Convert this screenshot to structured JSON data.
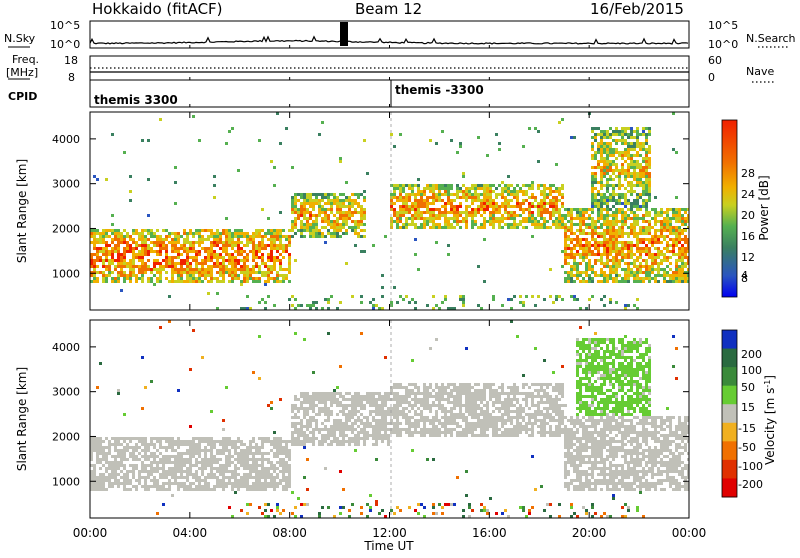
{
  "header": {
    "radar": "Hokkaido (fitACF)",
    "beam": "Beam 12",
    "date": "16/Feb/2015"
  },
  "noise_panel": {
    "left_label": "N.Sky",
    "right_label": "N.Search",
    "left_ticks": [
      "10^5",
      "10^0"
    ],
    "right_ticks": [
      "10^5",
      "10^0"
    ]
  },
  "freq_panel": {
    "left_label_top": "Freq.",
    "left_label_unit": "[MHz]",
    "right_label": "Nave",
    "left_ticks": [
      "18",
      "8"
    ],
    "right_ticks": [
      "60",
      "0"
    ]
  },
  "cpid_panel": {
    "label": "CPID",
    "entries": [
      "themis 3300",
      "themis -3300"
    ],
    "entry_start_hours": [
      0,
      12
    ]
  },
  "time_axis": {
    "label": "Time UT",
    "ticks": [
      "00:00",
      "04:00",
      "08:00",
      "12:00",
      "16:00",
      "20:00",
      "00:00"
    ],
    "tick_hours": [
      0,
      4,
      8,
      12,
      16,
      20,
      24
    ]
  },
  "power_panel": {
    "ylabel": "Slant Range [km]",
    "yticks": [
      "4000",
      "3000",
      "2000",
      "1000"
    ],
    "ytick_values": [
      4000,
      3000,
      2000,
      1000
    ],
    "colorbar_label": "Power [dB]",
    "colorbar_ticks": [
      "28",
      "24",
      "20",
      "16",
      "12",
      "8",
      "4"
    ]
  },
  "velocity_panel": {
    "ylabel": "Slant Range [km]",
    "yticks": [
      "4000",
      "3000",
      "2000",
      "1000"
    ],
    "ytick_values": [
      4000,
      3000,
      2000,
      1000
    ],
    "colorbar_label": "Velocity [m s",
    "colorbar_label_sup": "-1",
    "colorbar_label_end": "]",
    "colorbar_ticks": [
      "200",
      "100",
      "50",
      "15",
      "-15",
      "-50",
      "-100",
      "-200"
    ]
  },
  "chart_data": [
    {
      "type": "heatmap",
      "title": "",
      "xlabel": "Time UT",
      "ylabel": "Slant Range [km]",
      "xlim": [
        0,
        24
      ],
      "ylim": [
        180,
        4600
      ],
      "zlabel": "Power [dB]",
      "zlim": [
        0,
        32
      ],
      "colors": [
        "#0000f0",
        "#2a55c0",
        "#3a8060",
        "#55b050",
        "#c8d020",
        "#f0b000",
        "#f07000",
        "#f02000"
      ],
      "echo_bands": [
        {
          "t": [
            0.0,
            8.0
          ],
          "range": [
            800,
            2000
          ],
          "power_db": 28
        },
        {
          "t": [
            8.0,
            11.0
          ],
          "range": [
            1800,
            2800
          ],
          "power_db": 24
        },
        {
          "t": [
            12.0,
            19.0
          ],
          "range": [
            2000,
            3000
          ],
          "power_db": 26
        },
        {
          "t": [
            19.0,
            24.0
          ],
          "range": [
            800,
            2500
          ],
          "power_db": 26
        },
        {
          "t": [
            20.0,
            22.5
          ],
          "range": [
            2500,
            4300
          ],
          "power_db": 22
        }
      ]
    },
    {
      "type": "heatmap",
      "title": "",
      "xlabel": "Time UT",
      "ylabel": "Slant Range [km]",
      "xlim": [
        0,
        24
      ],
      "ylim": [
        180,
        4600
      ],
      "zlabel": "Velocity [m s-1]",
      "zlim": [
        -200,
        200
      ],
      "colors": [
        "#1030c0",
        "#2a6a40",
        "#3a8a3a",
        "#66cc33",
        "#c0c0b8",
        "#f0b020",
        "#f07000",
        "#e03000",
        "#e00000"
      ],
      "echo_bands": [
        {
          "t": [
            0.0,
            8.0
          ],
          "range": [
            800,
            2000
          ],
          "velocity": 0
        },
        {
          "t": [
            8.0,
            12.0
          ],
          "range": [
            1800,
            3000
          ],
          "velocity": 0
        },
        {
          "t": [
            12.0,
            19.0
          ],
          "range": [
            2000,
            3200
          ],
          "velocity": 0
        },
        {
          "t": [
            19.0,
            24.0
          ],
          "range": [
            800,
            2500
          ],
          "velocity": 0
        },
        {
          "t": [
            19.5,
            22.5
          ],
          "range": [
            2500,
            4200
          ],
          "velocity": 40
        }
      ]
    }
  ]
}
